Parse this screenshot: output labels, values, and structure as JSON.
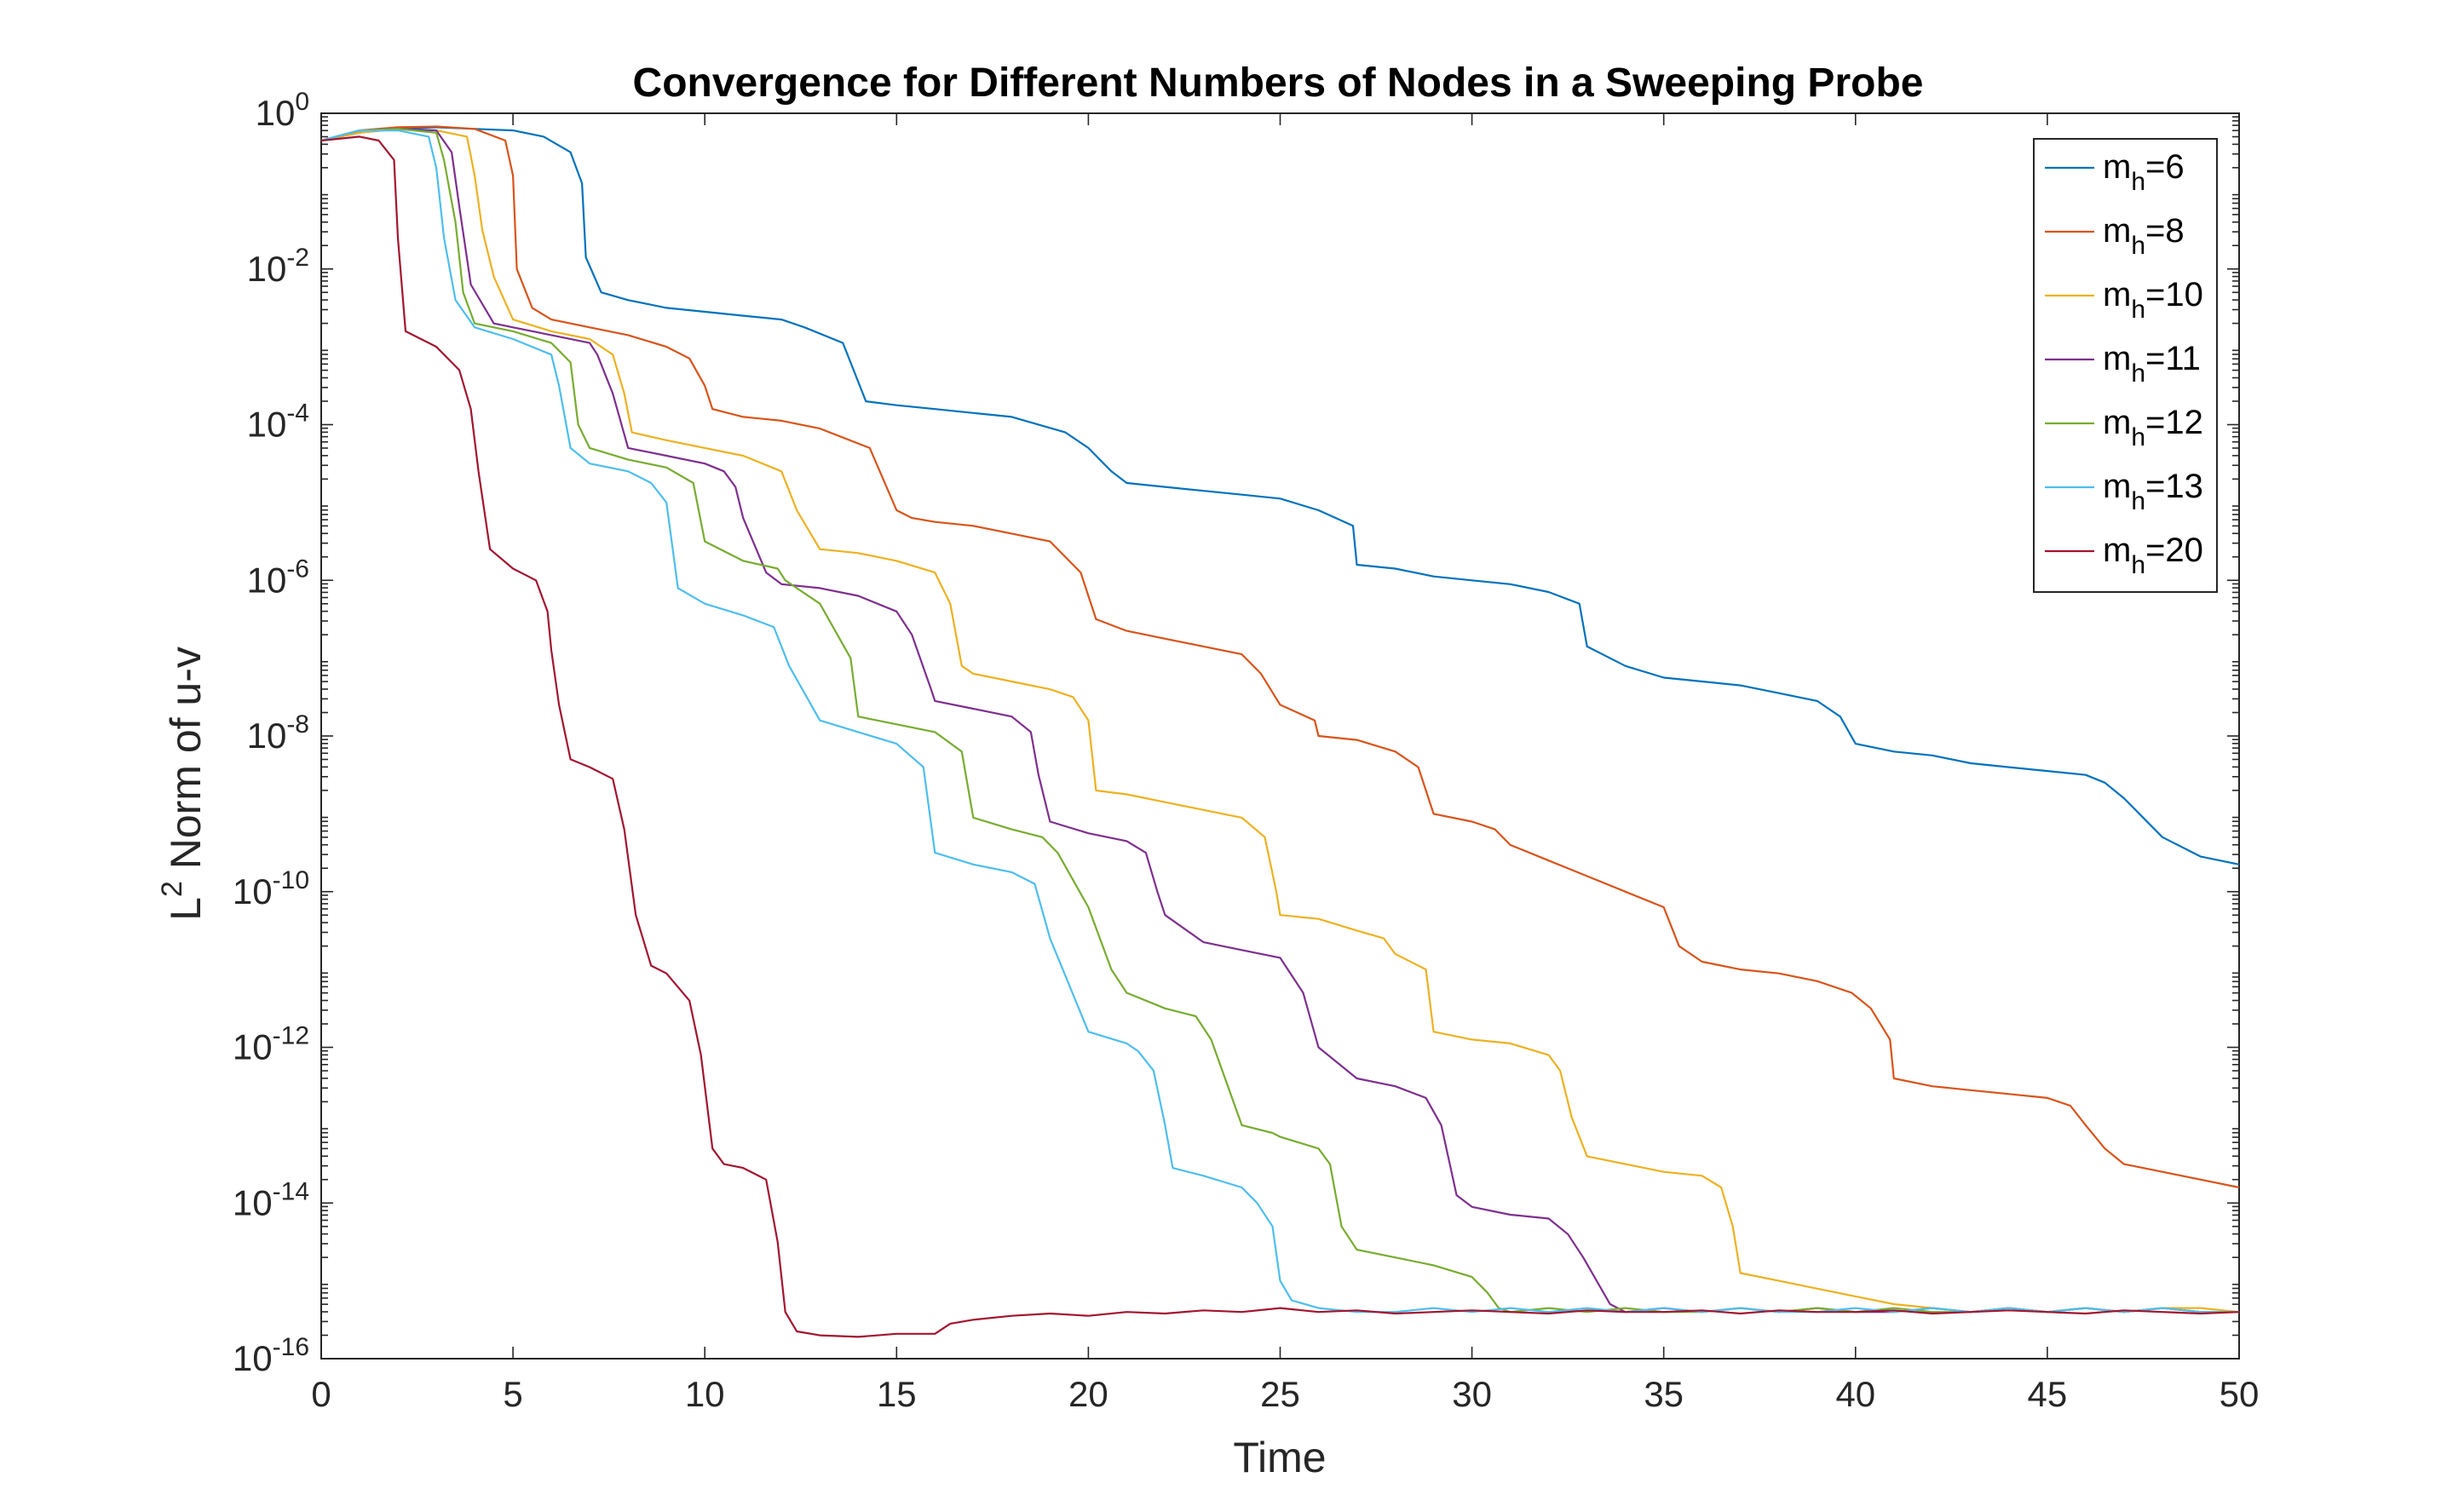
{
  "chart_data": {
    "type": "line",
    "title": "Convergence for Different Numbers of Nodes in a Sweeping Probe",
    "xlabel": "Time",
    "ylabel_base": "L",
    "ylabel_sup": "2",
    "ylabel_rest": " Norm of u-v",
    "yscale": "log",
    "xlim": [
      0,
      50
    ],
    "ylim_exp": [
      -16,
      0
    ],
    "grid": false,
    "legend_position": "top-right",
    "x_ticks": [
      "0",
      "5",
      "10",
      "15",
      "20",
      "25",
      "30",
      "35",
      "40",
      "45",
      "50"
    ],
    "y_ticks": [
      {
        "base": "10",
        "exp": "0"
      },
      {
        "base": "10",
        "exp": "-2"
      },
      {
        "base": "10",
        "exp": "-4"
      },
      {
        "base": "10",
        "exp": "-6"
      },
      {
        "base": "10",
        "exp": "-8"
      },
      {
        "base": "10",
        "exp": "-10"
      },
      {
        "base": "10",
        "exp": "-12"
      },
      {
        "base": "10",
        "exp": "-14"
      },
      {
        "base": "10",
        "exp": "-16"
      }
    ],
    "series": [
      {
        "name": "m_h=6",
        "legend_main": "m",
        "legend_sub": "h",
        "legend_tail": "=6",
        "color": "#0072BD",
        "x": [
          0,
          1,
          2,
          3,
          4,
          5,
          5.8,
          6.5,
          6.8,
          6.9,
          7.3,
          8,
          9,
          10,
          11,
          12,
          12.6,
          13.6,
          14.2,
          15,
          16,
          17,
          18,
          19.4,
          20,
          20.6,
          21,
          22,
          23,
          24,
          25,
          26,
          26.9,
          27,
          28,
          29,
          30,
          31,
          32,
          32.8,
          33,
          34,
          35,
          36,
          37,
          38,
          39,
          39.6,
          40,
          41,
          42,
          43,
          44,
          45,
          46,
          46.5,
          47,
          48,
          49,
          50
        ],
        "y": [
          -0.35,
          -0.25,
          -0.2,
          -0.18,
          -0.2,
          -0.22,
          -0.3,
          -0.5,
          -0.9,
          -1.85,
          -2.3,
          -2.4,
          -2.5,
          -2.55,
          -2.6,
          -2.65,
          -2.75,
          -2.95,
          -3.7,
          -3.75,
          -3.8,
          -3.85,
          -3.9,
          -4.1,
          -4.3,
          -4.6,
          -4.75,
          -4.8,
          -4.85,
          -4.9,
          -4.95,
          -5.1,
          -5.3,
          -5.8,
          -5.85,
          -5.95,
          -6.0,
          -6.05,
          -6.15,
          -6.3,
          -6.85,
          -7.1,
          -7.25,
          -7.3,
          -7.35,
          -7.45,
          -7.55,
          -7.75,
          -8.1,
          -8.2,
          -8.25,
          -8.35,
          -8.4,
          -8.45,
          -8.5,
          -8.6,
          -8.8,
          -9.3,
          -9.55,
          -9.65
        ]
      },
      {
        "name": "m_h=8",
        "legend_main": "m",
        "legend_sub": "h",
        "legend_tail": "=8",
        "color": "#D95319",
        "x": [
          0,
          1,
          2,
          3,
          4,
          4.8,
          5.0,
          5.1,
          5.5,
          6,
          7,
          8,
          9,
          9.6,
          10,
          10.2,
          11,
          12,
          13,
          14.3,
          15,
          15.4,
          16,
          17,
          18,
          19,
          19.8,
          20.2,
          21,
          22,
          23,
          24,
          24.5,
          25,
          25.9,
          26,
          27,
          28,
          28.6,
          29,
          30,
          30.6,
          31,
          32,
          33,
          34,
          35,
          35.4,
          36,
          37,
          38,
          39,
          39.9,
          40.4,
          40.9,
          41,
          42,
          43,
          44,
          45,
          45.6,
          46,
          46.5,
          47,
          48,
          49,
          50
        ],
        "y": [
          -0.35,
          -0.22,
          -0.18,
          -0.17,
          -0.2,
          -0.35,
          -0.8,
          -2.0,
          -2.5,
          -2.65,
          -2.75,
          -2.85,
          -3.0,
          -3.15,
          -3.5,
          -3.8,
          -3.9,
          -3.95,
          -4.05,
          -4.3,
          -5.1,
          -5.2,
          -5.25,
          -5.3,
          -5.4,
          -5.5,
          -5.9,
          -6.5,
          -6.65,
          -6.75,
          -6.85,
          -6.95,
          -7.2,
          -7.6,
          -7.8,
          -8.0,
          -8.05,
          -8.2,
          -8.4,
          -9.0,
          -9.1,
          -9.2,
          -9.4,
          -9.6,
          -9.8,
          -10.0,
          -10.2,
          -10.7,
          -10.9,
          -11.0,
          -11.05,
          -11.15,
          -11.3,
          -11.5,
          -11.9,
          -12.4,
          -12.5,
          -12.55,
          -12.6,
          -12.65,
          -12.75,
          -13.0,
          -13.3,
          -13.5,
          -13.6,
          -13.7,
          -13.8
        ]
      },
      {
        "name": "m_h=10",
        "legend_main": "m",
        "legend_sub": "h",
        "legend_tail": "=10",
        "color": "#EDB120",
        "x": [
          0,
          1,
          2,
          3,
          3.8,
          4.0,
          4.2,
          4.5,
          5,
          6,
          7,
          7.6,
          7.9,
          8.1,
          9,
          10,
          11,
          12,
          12.4,
          13,
          14,
          15,
          16,
          16.4,
          16.7,
          17,
          18,
          19,
          19.6,
          20,
          20.2,
          21,
          22,
          23,
          24,
          24.6,
          24.9,
          25,
          26,
          27,
          27.7,
          28,
          28.8,
          29,
          30,
          31,
          32,
          32.3,
          32.6,
          33,
          34,
          35,
          36,
          36.5,
          36.8,
          37,
          38,
          39,
          40,
          41,
          42,
          43,
          44,
          45,
          46,
          47,
          48,
          49,
          50
        ],
        "y": [
          -0.35,
          -0.25,
          -0.2,
          -0.22,
          -0.3,
          -0.8,
          -1.5,
          -2.1,
          -2.65,
          -2.8,
          -2.9,
          -3.1,
          -3.6,
          -4.1,
          -4.2,
          -4.3,
          -4.4,
          -4.6,
          -5.1,
          -5.6,
          -5.65,
          -5.75,
          -5.9,
          -6.3,
          -7.1,
          -7.2,
          -7.3,
          -7.4,
          -7.5,
          -7.8,
          -8.7,
          -8.75,
          -8.85,
          -8.95,
          -9.05,
          -9.3,
          -10.0,
          -10.3,
          -10.35,
          -10.5,
          -10.6,
          -10.8,
          -11.0,
          -11.8,
          -11.9,
          -11.95,
          -12.1,
          -12.3,
          -12.9,
          -13.4,
          -13.5,
          -13.6,
          -13.65,
          -13.8,
          -14.3,
          -14.9,
          -15.0,
          -15.1,
          -15.2,
          -15.3,
          -15.35,
          -15.4,
          -15.35,
          -15.4,
          -15.35,
          -15.4,
          -15.35,
          -15.35,
          -15.4
        ]
      },
      {
        "name": "m_h=11",
        "legend_main": "m",
        "legend_sub": "h",
        "legend_tail": "=11",
        "color": "#7E2F8E",
        "x": [
          0,
          1,
          2,
          3,
          3.4,
          3.6,
          3.9,
          4.5,
          5,
          6,
          7,
          7.2,
          7.6,
          8,
          9,
          10,
          10.5,
          10.8,
          11,
          11.6,
          12,
          13,
          14,
          15,
          15.4,
          15.9,
          16,
          17,
          18,
          18.5,
          18.7,
          19,
          20,
          21,
          21.5,
          21.8,
          22,
          23,
          24,
          25,
          25.2,
          25.6,
          26,
          27,
          28,
          28.8,
          29.2,
          29.6,
          30,
          31,
          32,
          32.5,
          32.9,
          33.6,
          33.8,
          34,
          35,
          36,
          37,
          38,
          39,
          40,
          41,
          42,
          43,
          44,
          45,
          46,
          47,
          48,
          49,
          50
        ],
        "y": [
          -0.35,
          -0.22,
          -0.2,
          -0.22,
          -0.5,
          -1.2,
          -2.2,
          -2.7,
          -2.75,
          -2.85,
          -2.95,
          -3.1,
          -3.6,
          -4.3,
          -4.4,
          -4.5,
          -4.6,
          -4.8,
          -5.2,
          -5.9,
          -6.05,
          -6.1,
          -6.2,
          -6.4,
          -6.7,
          -7.4,
          -7.55,
          -7.65,
          -7.75,
          -7.95,
          -8.5,
          -9.1,
          -9.25,
          -9.35,
          -9.5,
          -10.0,
          -10.3,
          -10.65,
          -10.75,
          -10.85,
          -11.0,
          -11.3,
          -12.0,
          -12.4,
          -12.5,
          -12.65,
          -13.0,
          -13.9,
          -14.05,
          -14.15,
          -14.2,
          -14.4,
          -14.7,
          -15.3,
          -15.35,
          -15.4,
          -15.35,
          -15.4,
          -15.35,
          -15.4,
          -15.35,
          -15.4,
          -15.4,
          -15.35,
          -15.4,
          -15.35,
          -15.4,
          -15.35,
          -15.4,
          -15.35,
          -15.4,
          -15.4
        ]
      },
      {
        "name": "m_h=12",
        "legend_main": "m",
        "legend_sub": "h",
        "legend_tail": "=12",
        "color": "#77AC30",
        "x": [
          0,
          1,
          2,
          3,
          3.2,
          3.5,
          3.7,
          4,
          5,
          6,
          6.5,
          6.7,
          7,
          8,
          9,
          9.7,
          10,
          11,
          11.9,
          12.1,
          13,
          13.8,
          14,
          15,
          16,
          16.7,
          17,
          18,
          18.8,
          19.2,
          20,
          20.6,
          21,
          22,
          22.8,
          23.2,
          24,
          24.8,
          25,
          26,
          26.3,
          26.6,
          27,
          28,
          29,
          30,
          30.4,
          30.7,
          31,
          32,
          33,
          34,
          35,
          36,
          37,
          38,
          39,
          40,
          41,
          42,
          43,
          44,
          45,
          46,
          47,
          48,
          49,
          50
        ],
        "y": [
          -0.35,
          -0.22,
          -0.2,
          -0.25,
          -0.6,
          -1.4,
          -2.3,
          -2.7,
          -2.8,
          -2.95,
          -3.2,
          -4.0,
          -4.3,
          -4.45,
          -4.55,
          -4.75,
          -5.5,
          -5.75,
          -5.85,
          -6.0,
          -6.3,
          -7.0,
          -7.75,
          -7.85,
          -7.95,
          -8.2,
          -9.05,
          -9.2,
          -9.3,
          -9.5,
          -10.2,
          -11.0,
          -11.3,
          -11.5,
          -11.6,
          -11.9,
          -13.0,
          -13.1,
          -13.15,
          -13.3,
          -13.5,
          -14.3,
          -14.6,
          -14.7,
          -14.8,
          -14.95,
          -15.15,
          -15.35,
          -15.4,
          -15.35,
          -15.4,
          -15.35,
          -15.4,
          -15.4,
          -15.35,
          -15.4,
          -15.35,
          -15.4,
          -15.35,
          -15.4,
          -15.4,
          -15.35,
          -15.4,
          -15.35,
          -15.4,
          -15.35,
          -15.4,
          -15.4
        ]
      },
      {
        "name": "m_h=13",
        "legend_main": "m",
        "legend_sub": "h",
        "legend_tail": "=13",
        "color": "#4DBEEE",
        "x": [
          0,
          1,
          2,
          2.8,
          3.0,
          3.2,
          3.5,
          4,
          5,
          6,
          6.2,
          6.5,
          7,
          8,
          8.6,
          9,
          9.3,
          10,
          11,
          11.8,
          12.2,
          13,
          14,
          15,
          15.7,
          16,
          17,
          18,
          18.6,
          19.0,
          20,
          21,
          21.3,
          21.7,
          22,
          22.2,
          23,
          24,
          24.4,
          24.8,
          25,
          25.3,
          26,
          27,
          28,
          29,
          30,
          31,
          32,
          33,
          34,
          35,
          36,
          37,
          38,
          39,
          40,
          41,
          42,
          43,
          44,
          45,
          46,
          47,
          48,
          49,
          50
        ],
        "y": [
          -0.35,
          -0.22,
          -0.22,
          -0.3,
          -0.7,
          -1.6,
          -2.4,
          -2.75,
          -2.9,
          -3.1,
          -3.5,
          -4.3,
          -4.5,
          -4.6,
          -4.75,
          -5.0,
          -6.1,
          -6.3,
          -6.45,
          -6.6,
          -7.1,
          -7.8,
          -7.95,
          -8.1,
          -8.4,
          -9.5,
          -9.65,
          -9.75,
          -9.9,
          -10.6,
          -11.8,
          -11.95,
          -12.05,
          -12.3,
          -13.0,
          -13.55,
          -13.65,
          -13.8,
          -14.0,
          -14.3,
          -15.0,
          -15.25,
          -15.35,
          -15.4,
          -15.4,
          -15.35,
          -15.4,
          -15.35,
          -15.4,
          -15.35,
          -15.4,
          -15.35,
          -15.4,
          -15.35,
          -15.4,
          -15.4,
          -15.35,
          -15.4,
          -15.35,
          -15.4,
          -15.35,
          -15.4,
          -15.35,
          -15.4,
          -15.35,
          -15.4,
          -15.4
        ]
      },
      {
        "name": "m_h=20",
        "legend_main": "m",
        "legend_sub": "h",
        "legend_tail": "=20",
        "color": "#A2142F",
        "x": [
          0,
          1,
          1.5,
          1.9,
          2.0,
          2.2,
          3,
          3.6,
          3.9,
          4.1,
          4.4,
          5,
          5.6,
          5.9,
          6.0,
          6.2,
          6.5,
          7,
          7.6,
          7.9,
          8.2,
          8.6,
          9,
          9.6,
          9.9,
          10.2,
          10.5,
          11,
          11.6,
          11.9,
          12.1,
          12.4,
          13,
          14,
          15,
          16,
          16.4,
          17,
          18,
          19,
          20,
          21,
          22,
          23,
          24,
          25,
          26,
          27,
          28,
          29,
          30,
          31,
          32,
          33,
          34,
          35,
          36,
          37,
          38,
          39,
          40,
          41,
          42,
          43,
          44,
          45,
          46,
          47,
          48,
          49,
          50
        ],
        "y": [
          -0.35,
          -0.3,
          -0.35,
          -0.6,
          -1.6,
          -2.8,
          -3.0,
          -3.3,
          -3.8,
          -4.6,
          -5.6,
          -5.85,
          -6.0,
          -6.4,
          -6.9,
          -7.6,
          -8.3,
          -8.4,
          -8.55,
          -9.2,
          -10.3,
          -10.95,
          -11.05,
          -11.4,
          -12.1,
          -13.3,
          -13.5,
          -13.55,
          -13.7,
          -14.5,
          -15.4,
          -15.65,
          -15.7,
          -15.72,
          -15.68,
          -15.68,
          -15.55,
          -15.5,
          -15.45,
          -15.42,
          -15.45,
          -15.4,
          -15.42,
          -15.38,
          -15.4,
          -15.35,
          -15.4,
          -15.38,
          -15.42,
          -15.4,
          -15.38,
          -15.4,
          -15.42,
          -15.38,
          -15.4,
          -15.4,
          -15.38,
          -15.42,
          -15.38,
          -15.4,
          -15.4,
          -15.38,
          -15.42,
          -15.4,
          -15.38,
          -15.4,
          -15.42,
          -15.38,
          -15.4,
          -15.42,
          -15.4
        ]
      }
    ]
  }
}
